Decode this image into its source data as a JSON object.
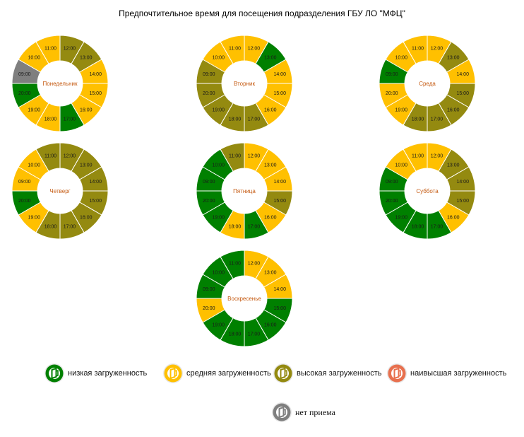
{
  "title": "Предпочтительное время для посещения подразделения ГБУ ЛО \"МФЦ\"",
  "colors": {
    "low": "#008000",
    "medium": "#FFC000",
    "high": "#948A10",
    "highest": "#E8704E",
    "closed": "#7F7F7F"
  },
  "legend": [
    {
      "key": "low",
      "label": "низкая загруженность"
    },
    {
      "key": "medium",
      "label": "средняя загруженность"
    },
    {
      "key": "high",
      "label": "высокая загруженность"
    },
    {
      "key": "highest",
      "label": "наивысшая загруженность"
    },
    {
      "key": "closed",
      "label": "нет приема"
    }
  ],
  "chart_data": [
    {
      "type": "pie",
      "title": "Понедельник",
      "hours": [
        "11:00",
        "12:00",
        "13:00",
        "14:00",
        "15:00",
        "16:00",
        "17:00",
        "18:00",
        "19:00",
        "20:00",
        "09:00",
        "10:00"
      ],
      "load": [
        "medium",
        "high",
        "high",
        "medium",
        "medium",
        "medium",
        "low",
        "medium",
        "medium",
        "low",
        "closed",
        "medium"
      ]
    },
    {
      "type": "pie",
      "title": "Вторник",
      "hours": [
        "11:00",
        "12:00",
        "13:00",
        "14:00",
        "15:00",
        "16:00",
        "17:00",
        "18:00",
        "19:00",
        "20:00",
        "09:00",
        "10:00"
      ],
      "load": [
        "medium",
        "medium",
        "low",
        "medium",
        "medium",
        "medium",
        "high",
        "high",
        "high",
        "high",
        "high",
        "medium"
      ]
    },
    {
      "type": "pie",
      "title": "Среда",
      "hours": [
        "11:00",
        "12:00",
        "13:00",
        "14:00",
        "15:00",
        "16:00",
        "17:00",
        "18:00",
        "19:00",
        "20:00",
        "09:00",
        "10:00"
      ],
      "load": [
        "medium",
        "medium",
        "high",
        "medium",
        "high",
        "high",
        "high",
        "high",
        "medium",
        "medium",
        "low",
        "medium"
      ]
    },
    {
      "type": "pie",
      "title": "Четверг",
      "hours": [
        "11:00",
        "12:00",
        "13:00",
        "14:00",
        "15:00",
        "16:00",
        "17:00",
        "18:00",
        "19:00",
        "20:00",
        "09:00",
        "10:00"
      ],
      "load": [
        "high",
        "high",
        "high",
        "high",
        "high",
        "high",
        "high",
        "high",
        "medium",
        "low",
        "medium",
        "medium"
      ]
    },
    {
      "type": "pie",
      "title": "Пятница",
      "hours": [
        "11:00",
        "12:00",
        "13:00",
        "14:00",
        "15:00",
        "16:00",
        "17:00",
        "18:00",
        "19:00",
        "20:00",
        "09:00",
        "10:00"
      ],
      "load": [
        "high",
        "medium",
        "medium",
        "medium",
        "high",
        "medium",
        "low",
        "medium",
        "low",
        "low",
        "low",
        "low"
      ]
    },
    {
      "type": "pie",
      "title": "Суббота",
      "hours": [
        "11:00",
        "12:00",
        "13:00",
        "14:00",
        "15:00",
        "16:00",
        "17:00",
        "18:00",
        "19:00",
        "20:00",
        "09:00",
        "10:00"
      ],
      "load": [
        "medium",
        "medium",
        "high",
        "high",
        "high",
        "medium",
        "low",
        "low",
        "low",
        "low",
        "low",
        "medium"
      ]
    },
    {
      "type": "pie",
      "title": "Воскресенье",
      "hours": [
        "11:00",
        "12:00",
        "13:00",
        "14:00",
        "15:00",
        "16:00",
        "17:00",
        "18:00",
        "19:00",
        "20:00",
        "09:00",
        "10:00"
      ],
      "load": [
        "low",
        "medium",
        "medium",
        "medium",
        "low",
        "low",
        "low",
        "low",
        "low",
        "medium",
        "low",
        "low"
      ]
    }
  ]
}
